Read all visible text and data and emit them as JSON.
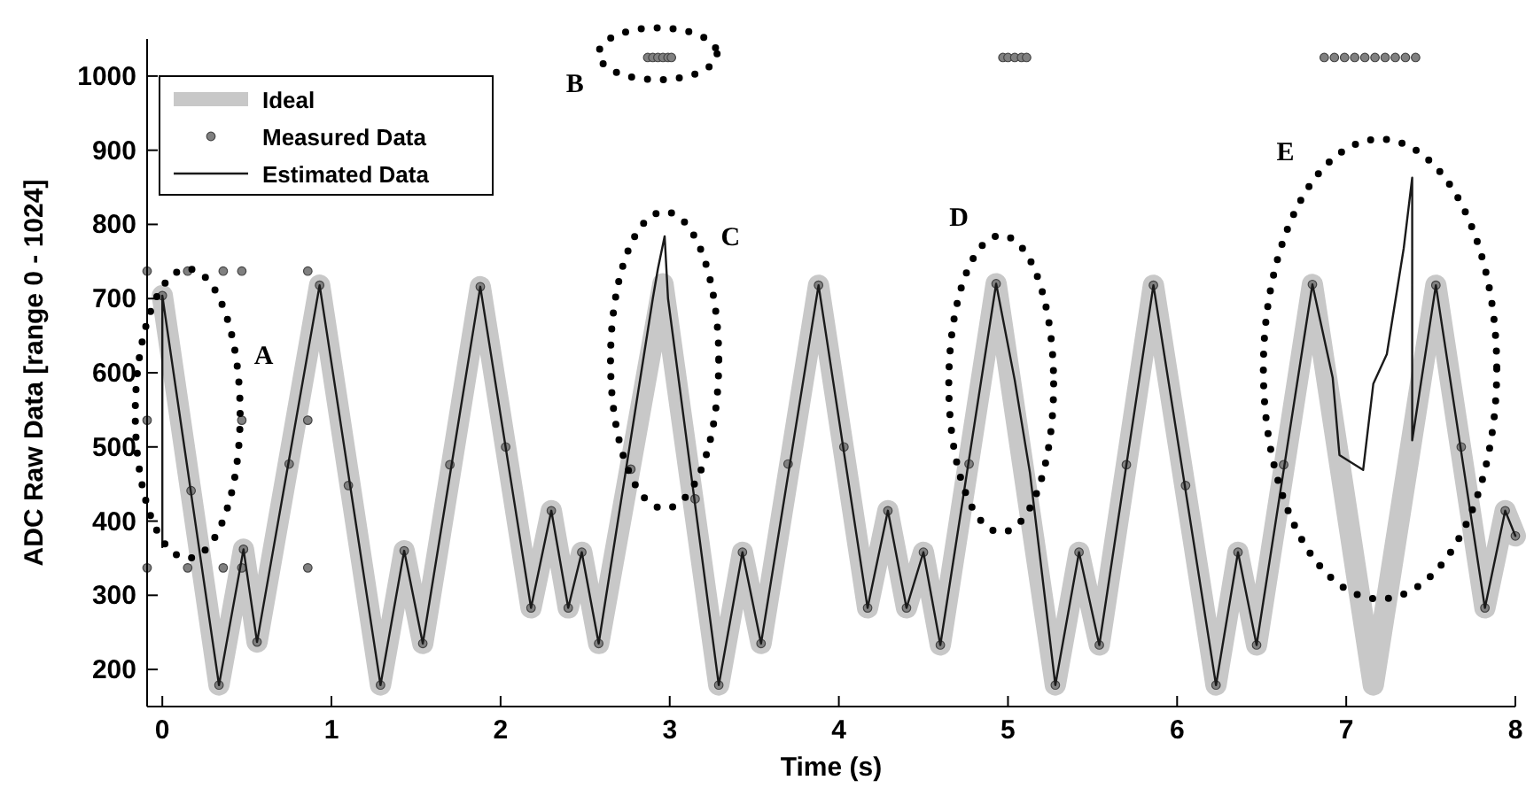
{
  "chart_data": {
    "type": "line",
    "xlabel": "Time (s)",
    "ylabel": "ADC Raw Data [range 0 - 1024]",
    "xlim": [
      -0.09,
      8
    ],
    "ylim": [
      150,
      1050
    ],
    "xticks": [
      0,
      1,
      2,
      3,
      4,
      5,
      6,
      7,
      8
    ],
    "yticks": [
      200,
      300,
      400,
      500,
      600,
      700,
      800,
      900,
      1000
    ],
    "grid": false,
    "legend": "top left",
    "series": [
      {
        "name": "Ideal",
        "color": "#c8c8c8",
        "x": [
          0,
          0.335,
          0.48,
          0.56,
          0.93,
          1.29,
          1.43,
          1.54,
          1.88,
          2.18,
          2.3,
          2.4,
          2.48,
          2.58,
          2.96,
          3.29,
          3.43,
          3.54,
          3.88,
          4.17,
          4.29,
          4.4,
          4.5,
          4.6,
          4.93,
          5.28,
          5.42,
          5.54,
          5.86,
          6.23,
          6.36,
          6.47,
          6.8,
          7.16,
          7.53,
          7.82,
          7.94,
          8.0
        ],
        "values": [
          704,
          179,
          362,
          237,
          718,
          179,
          360,
          235,
          716,
          283,
          414,
          283,
          358,
          235,
          720,
          179,
          358,
          235,
          718,
          283,
          414,
          283,
          358,
          233,
          720,
          179,
          358,
          233,
          718,
          179,
          358,
          233,
          719,
          179,
          718,
          283,
          414,
          380
        ]
      },
      {
        "name": "Measured Data",
        "type": "scatter",
        "color": "#808080",
        "marker": "circle",
        "x": [
          0,
          0.17,
          0.335,
          0.48,
          0.56,
          0.75,
          0.93,
          1.1,
          1.29,
          1.43,
          1.54,
          1.7,
          1.88,
          2.03,
          2.18,
          2.3,
          2.4,
          2.48,
          2.58,
          2.77,
          2.87,
          2.9,
          2.93,
          2.96,
          2.99,
          3.01,
          3.15,
          3.29,
          3.43,
          3.54,
          3.7,
          3.88,
          4.03,
          4.17,
          4.29,
          4.4,
          4.5,
          4.6,
          4.77,
          4.93,
          4.97,
          5.0,
          5.04,
          5.08,
          5.11,
          5.28,
          5.42,
          5.54,
          5.7,
          5.86,
          6.05,
          6.23,
          6.36,
          6.47,
          6.63,
          6.8,
          6.87,
          6.93,
          6.99,
          7.05,
          7.11,
          7.17,
          7.23,
          7.29,
          7.35,
          7.41,
          7.53,
          7.68,
          7.82,
          7.94,
          8.0,
          -0.09,
          0.15,
          0.36,
          0.47,
          0.86,
          -0.09,
          0.47,
          0.86,
          -0.09,
          0.15,
          0.36,
          0.47,
          0.86
        ],
        "values": [
          704,
          441,
          179,
          362,
          237,
          477,
          718,
          448,
          179,
          360,
          235,
          476,
          716,
          500,
          283,
          414,
          283,
          358,
          235,
          470,
          1025,
          1025,
          1025,
          1025,
          1025,
          1025,
          430,
          179,
          358,
          235,
          477,
          718,
          500,
          283,
          414,
          283,
          358,
          233,
          477,
          720,
          1025,
          1025,
          1025,
          1025,
          1025,
          179,
          358,
          233,
          476,
          718,
          448,
          179,
          358,
          233,
          476,
          719,
          1025,
          1025,
          1025,
          1025,
          1025,
          1025,
          1025,
          1025,
          1025,
          1025,
          718,
          500,
          283,
          414,
          380,
          737,
          737,
          737,
          737,
          737,
          536,
          536,
          536,
          337,
          337,
          337,
          337,
          337
        ]
      },
      {
        "name": "Estimated Data",
        "color": "#1a1a1a",
        "x": [
          0,
          0,
          0,
          0.335,
          0.48,
          0.56,
          0.93,
          1.29,
          1.43,
          1.54,
          1.88,
          2.18,
          2.3,
          2.4,
          2.48,
          2.58,
          2.9,
          2.93,
          2.97,
          2.99,
          3.29,
          3.43,
          3.54,
          3.88,
          4.17,
          4.29,
          4.4,
          4.5,
          4.6,
          4.93,
          5.04,
          5.13,
          5.28,
          5.42,
          5.54,
          5.86,
          6.23,
          6.36,
          6.47,
          6.8,
          6.92,
          6.96,
          7.1,
          7.16,
          7.24,
          7.34,
          7.39,
          7.39,
          7.53,
          7.82,
          7.94,
          8.0
        ],
        "values": [
          365,
          700,
          704,
          179,
          362,
          237,
          718,
          179,
          360,
          235,
          716,
          283,
          414,
          283,
          358,
          235,
          700,
          740,
          784,
          700,
          179,
          358,
          235,
          718,
          283,
          414,
          283,
          358,
          233,
          720,
          590,
          465,
          179,
          358,
          233,
          718,
          179,
          358,
          233,
          719,
          593,
          489,
          469,
          585,
          625,
          768,
          863,
          509,
          718,
          283,
          414,
          380
        ]
      }
    ],
    "annotations": [
      "A",
      "B",
      "C",
      "D",
      "E"
    ]
  }
}
